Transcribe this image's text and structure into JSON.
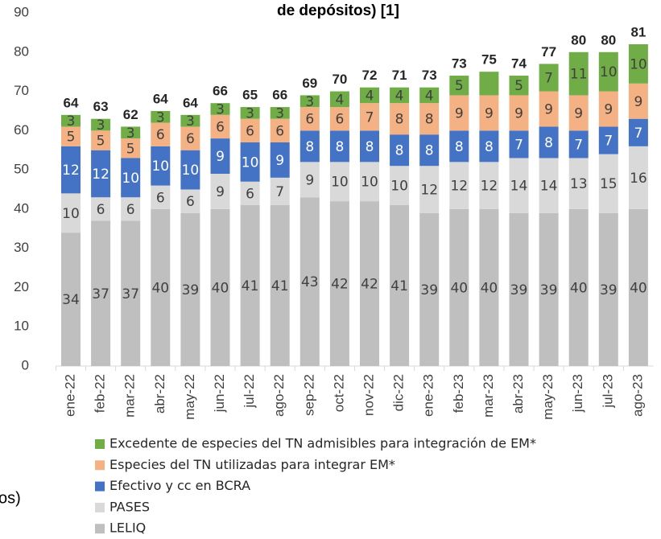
{
  "chart_data": {
    "type": "stacked_bar",
    "title": "de depósitos) [1]",
    "fragment": "os)",
    "categories": [
      "ene-22",
      "feb-22",
      "mar-22",
      "abr-22",
      "may-22",
      "jun-22",
      "jul-22",
      "ago-22",
      "sep-22",
      "oct-22",
      "nov-22",
      "dic-22",
      "ene-23",
      "feb-23",
      "mar-23",
      "abr-23",
      "may-23",
      "jun-23",
      "jul-23",
      "ago-23"
    ],
    "series": [
      {
        "name": "LELIQ",
        "color": "#bfbfbf",
        "label_color": "#404040",
        "values": [
          34,
          37,
          37,
          40,
          39,
          40,
          41,
          41,
          43,
          42,
          42,
          41,
          39,
          40,
          40,
          39,
          39,
          40,
          39,
          40
        ]
      },
      {
        "name": "PASES",
        "color": "#d9d9d9",
        "label_color": "#404040",
        "values": [
          10,
          6,
          6,
          6,
          6,
          9,
          6,
          7,
          9,
          10,
          10,
          10,
          12,
          12,
          12,
          14,
          14,
          13,
          15,
          16
        ]
      },
      {
        "name": "Efectivo y cc en BCRA",
        "color": "#4472c4",
        "label_color": "#ffffff",
        "values": [
          12,
          12,
          10,
          10,
          10,
          9,
          10,
          9,
          8,
          8,
          8,
          8,
          8,
          8,
          8,
          7,
          8,
          7,
          7,
          7
        ]
      },
      {
        "name": "Especies del TN utilizadas para integrar EM*",
        "color": "#f4b183",
        "label_color": "#404040",
        "values": [
          5,
          5,
          5,
          6,
          6,
          6,
          6,
          6,
          6,
          6,
          7,
          8,
          8,
          9,
          9,
          9,
          9,
          9,
          9,
          9
        ]
      },
      {
        "name": "Excedente de especies del TN admisibles para integración de EM*",
        "color": "#70ad47",
        "label_color": "#404040",
        "values": [
          3,
          3,
          3,
          3,
          3,
          3,
          3,
          3,
          3,
          4,
          4,
          4,
          4,
          5,
          6,
          5,
          7,
          11,
          10,
          10
        ],
        "value_labels": [
          3,
          3,
          3,
          3,
          3,
          3,
          3,
          3,
          3,
          4,
          4,
          4,
          4,
          5,
          null,
          5,
          7,
          11,
          10,
          10
        ]
      }
    ],
    "totals": [
      64,
      63,
      62,
      64,
      64,
      66,
      65,
      66,
      69,
      70,
      72,
      71,
      73,
      73,
      75,
      74,
      77,
      80,
      80,
      81
    ],
    "ylim": [
      0,
      90
    ],
    "yticks": [
      0,
      10,
      20,
      30,
      40,
      50,
      60,
      70,
      80,
      90
    ]
  }
}
